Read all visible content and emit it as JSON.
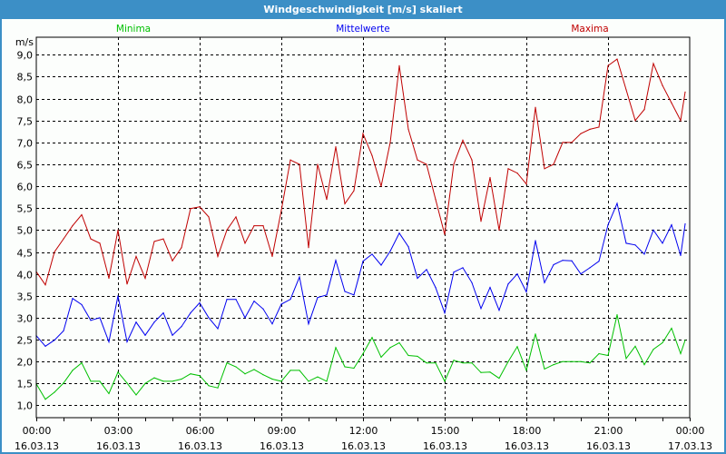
{
  "window": {
    "title": "Windgeschwindigkeit [m/s] skaliert"
  },
  "chart_data": {
    "type": "line",
    "title": "Windgeschwindigkeit [m/s] skaliert",
    "ylabel": "m/s",
    "ylim": [
      0.72,
      9.4
    ],
    "yticks": [
      "1,0",
      "1,5",
      "2,0",
      "2,5",
      "3,0",
      "3,5",
      "4,0",
      "4,5",
      "5,0",
      "5,5",
      "6,0",
      "6,5",
      "7,0",
      "7,5",
      "8,0",
      "8,5",
      "9,0"
    ],
    "ytick_values": [
      1,
      1.5,
      2,
      2.5,
      3,
      3.5,
      4,
      4.5,
      5,
      5.5,
      6,
      6.5,
      7,
      7.5,
      8,
      8.5,
      9
    ],
    "xticks": [
      {
        "time": "00:00",
        "date": "16.03.13"
      },
      {
        "time": "03:00",
        "date": "16.03.13"
      },
      {
        "time": "06:00",
        "date": "16.03.13"
      },
      {
        "time": "09:00",
        "date": "16.03.13"
      },
      {
        "time": "12:00",
        "date": "16.03.13"
      },
      {
        "time": "15:00",
        "date": "16.03.13"
      },
      {
        "time": "18:00",
        "date": "16.03.13"
      },
      {
        "time": "21:00",
        "date": "16.03.13"
      },
      {
        "time": "00:00",
        "date": "17.03.13"
      }
    ],
    "grid": true,
    "legend_placement": "top",
    "x": [
      "00:00",
      "00:20",
      "00:40",
      "01:00",
      "01:20",
      "01:40",
      "02:00",
      "02:20",
      "02:40",
      "03:00",
      "03:20",
      "03:40",
      "04:00",
      "04:20",
      "04:40",
      "05:00",
      "05:20",
      "05:40",
      "06:00",
      "06:20",
      "06:40",
      "07:00",
      "07:20",
      "07:40",
      "08:00",
      "08:20",
      "08:40",
      "09:00",
      "09:20",
      "09:40",
      "10:00",
      "10:20",
      "10:40",
      "11:00",
      "11:20",
      "11:40",
      "12:00",
      "12:20",
      "12:40",
      "13:00",
      "13:20",
      "13:40",
      "14:00",
      "14:20",
      "14:40",
      "15:00",
      "15:20",
      "15:40",
      "16:00",
      "16:20",
      "16:40",
      "17:00",
      "17:20",
      "17:40",
      "18:00",
      "18:20",
      "18:40",
      "19:00",
      "19:20",
      "19:40",
      "20:00",
      "20:20",
      "20:40",
      "21:00",
      "21:20",
      "21:40",
      "22:00",
      "22:20",
      "22:40",
      "23:00",
      "23:20",
      "23:40",
      "23:50"
    ],
    "series": [
      {
        "name": "Minima",
        "color": "#00c000",
        "values": [
          1.49,
          1.14,
          1.3,
          1.51,
          1.8,
          1.97,
          1.55,
          1.55,
          1.27,
          1.76,
          1.51,
          1.24,
          1.5,
          1.63,
          1.55,
          1.55,
          1.6,
          1.72,
          1.68,
          1.45,
          1.4,
          1.97,
          1.88,
          1.72,
          1.82,
          1.7,
          1.6,
          1.55,
          1.8,
          1.8,
          1.55,
          1.65,
          1.55,
          2.32,
          1.88,
          1.85,
          2.18,
          2.55,
          2.1,
          2.32,
          2.43,
          2.14,
          2.12,
          1.97,
          1.97,
          1.55,
          2.03,
          1.97,
          1.97,
          1.75,
          1.76,
          1.62,
          2.0,
          2.34,
          1.8,
          2.63,
          1.83,
          1.93,
          2.0,
          2.0,
          2.0,
          1.97,
          2.18,
          2.14,
          3.07,
          2.07,
          2.35,
          1.93,
          2.28,
          2.43,
          2.76,
          2.18,
          2.49
        ]
      },
      {
        "name": "Mittelwerte",
        "color": "#0000f0",
        "values": [
          2.59,
          2.35,
          2.49,
          2.7,
          3.44,
          3.3,
          2.94,
          3.0,
          2.45,
          3.5,
          2.45,
          2.9,
          2.6,
          2.9,
          3.11,
          2.6,
          2.8,
          3.11,
          3.34,
          3.0,
          2.75,
          3.42,
          3.42,
          3.0,
          3.38,
          3.2,
          2.86,
          3.31,
          3.42,
          3.93,
          2.86,
          3.46,
          3.52,
          4.31,
          3.6,
          3.52,
          4.29,
          4.45,
          4.2,
          4.52,
          4.93,
          4.62,
          3.9,
          4.1,
          3.69,
          3.11,
          4.04,
          4.14,
          3.8,
          3.21,
          3.69,
          3.17,
          3.77,
          4.0,
          3.59,
          4.76,
          3.8,
          4.21,
          4.31,
          4.3,
          4.0,
          4.14,
          4.29,
          5.12,
          5.61,
          4.7,
          4.66,
          4.45,
          5.0,
          4.7,
          5.12,
          4.42,
          5.14
        ]
      },
      {
        "name": "Maxima",
        "color": "#c00000",
        "values": [
          4.05,
          3.75,
          4.5,
          4.8,
          5.1,
          5.35,
          4.8,
          4.7,
          3.9,
          5.0,
          3.77,
          4.4,
          3.9,
          4.74,
          4.8,
          4.3,
          4.6,
          5.49,
          5.53,
          5.3,
          4.4,
          5.0,
          5.3,
          4.7,
          5.1,
          5.1,
          4.4,
          5.45,
          6.6,
          6.5,
          4.6,
          6.5,
          5.7,
          6.9,
          5.6,
          5.9,
          7.2,
          6.7,
          6.0,
          7.0,
          8.75,
          7.3,
          6.6,
          6.5,
          5.7,
          4.9,
          6.5,
          7.05,
          6.6,
          5.2,
          6.2,
          5.0,
          6.4,
          6.3,
          6.05,
          7.8,
          6.4,
          6.5,
          7.0,
          7.0,
          7.2,
          7.3,
          7.35,
          8.75,
          8.9,
          8.2,
          7.5,
          7.75,
          8.8,
          8.3,
          7.9,
          7.5,
          8.15
        ]
      }
    ]
  }
}
